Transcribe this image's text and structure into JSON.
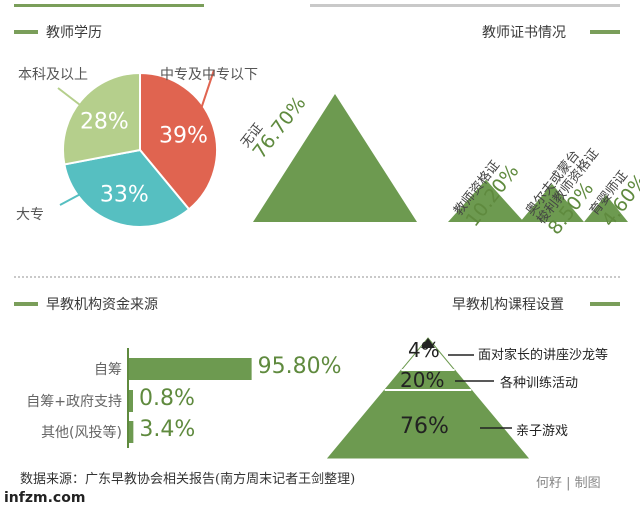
{
  "chart_data": [
    {
      "type": "pie",
      "title": "教师学历",
      "slices": [
        {
          "label": "中专及中专以下",
          "value": 39,
          "display": "39%",
          "color": "#e06450"
        },
        {
          "label": "大专",
          "value": 33,
          "display": "33%",
          "color": "#56bfc1"
        },
        {
          "label": "本科及以上",
          "value": 28,
          "display": "28%",
          "color": "#b5cf8c"
        }
      ]
    },
    {
      "type": "bar",
      "title": "教师证书情况",
      "categories": [
        "无证",
        "教师资格证",
        "奥尔夫或蒙台梭利教师资格证",
        "育婴师证"
      ],
      "category_lines": [
        [
          "无证"
        ],
        [
          "教师资格证"
        ],
        [
          "奥尔夫或蒙台",
          "梭利教师资格证"
        ],
        [
          "育婴师证"
        ]
      ],
      "values": [
        76.7,
        10.2,
        8.5,
        4.6
      ],
      "display": [
        "76.70%",
        "10.20%",
        "8.50%",
        "4.60%"
      ],
      "color": "#6d9a50"
    },
    {
      "type": "bar",
      "title": "早教机构资金来源",
      "categories": [
        "自筹",
        "自筹+政府支持",
        "其他(风投等)"
      ],
      "values": [
        95.8,
        0.8,
        3.4
      ],
      "display": [
        "95.80%",
        "0.8%",
        "3.4%"
      ],
      "color": "#6d9a50"
    },
    {
      "type": "area",
      "title": "早教机构课程设置",
      "categories": [
        "面对家长的讲座沙龙等",
        "各种训练活动",
        "亲子游戏"
      ],
      "values": [
        4,
        20,
        76
      ],
      "display": [
        "4%",
        "20%",
        "76%"
      ],
      "color": "#6d9a50"
    }
  ],
  "footer": {
    "source": "数据来源：广东早教协会相关报告(南方周末记者王剑整理)",
    "credit": "何籽 | 制图",
    "logo": "infzm.com"
  }
}
